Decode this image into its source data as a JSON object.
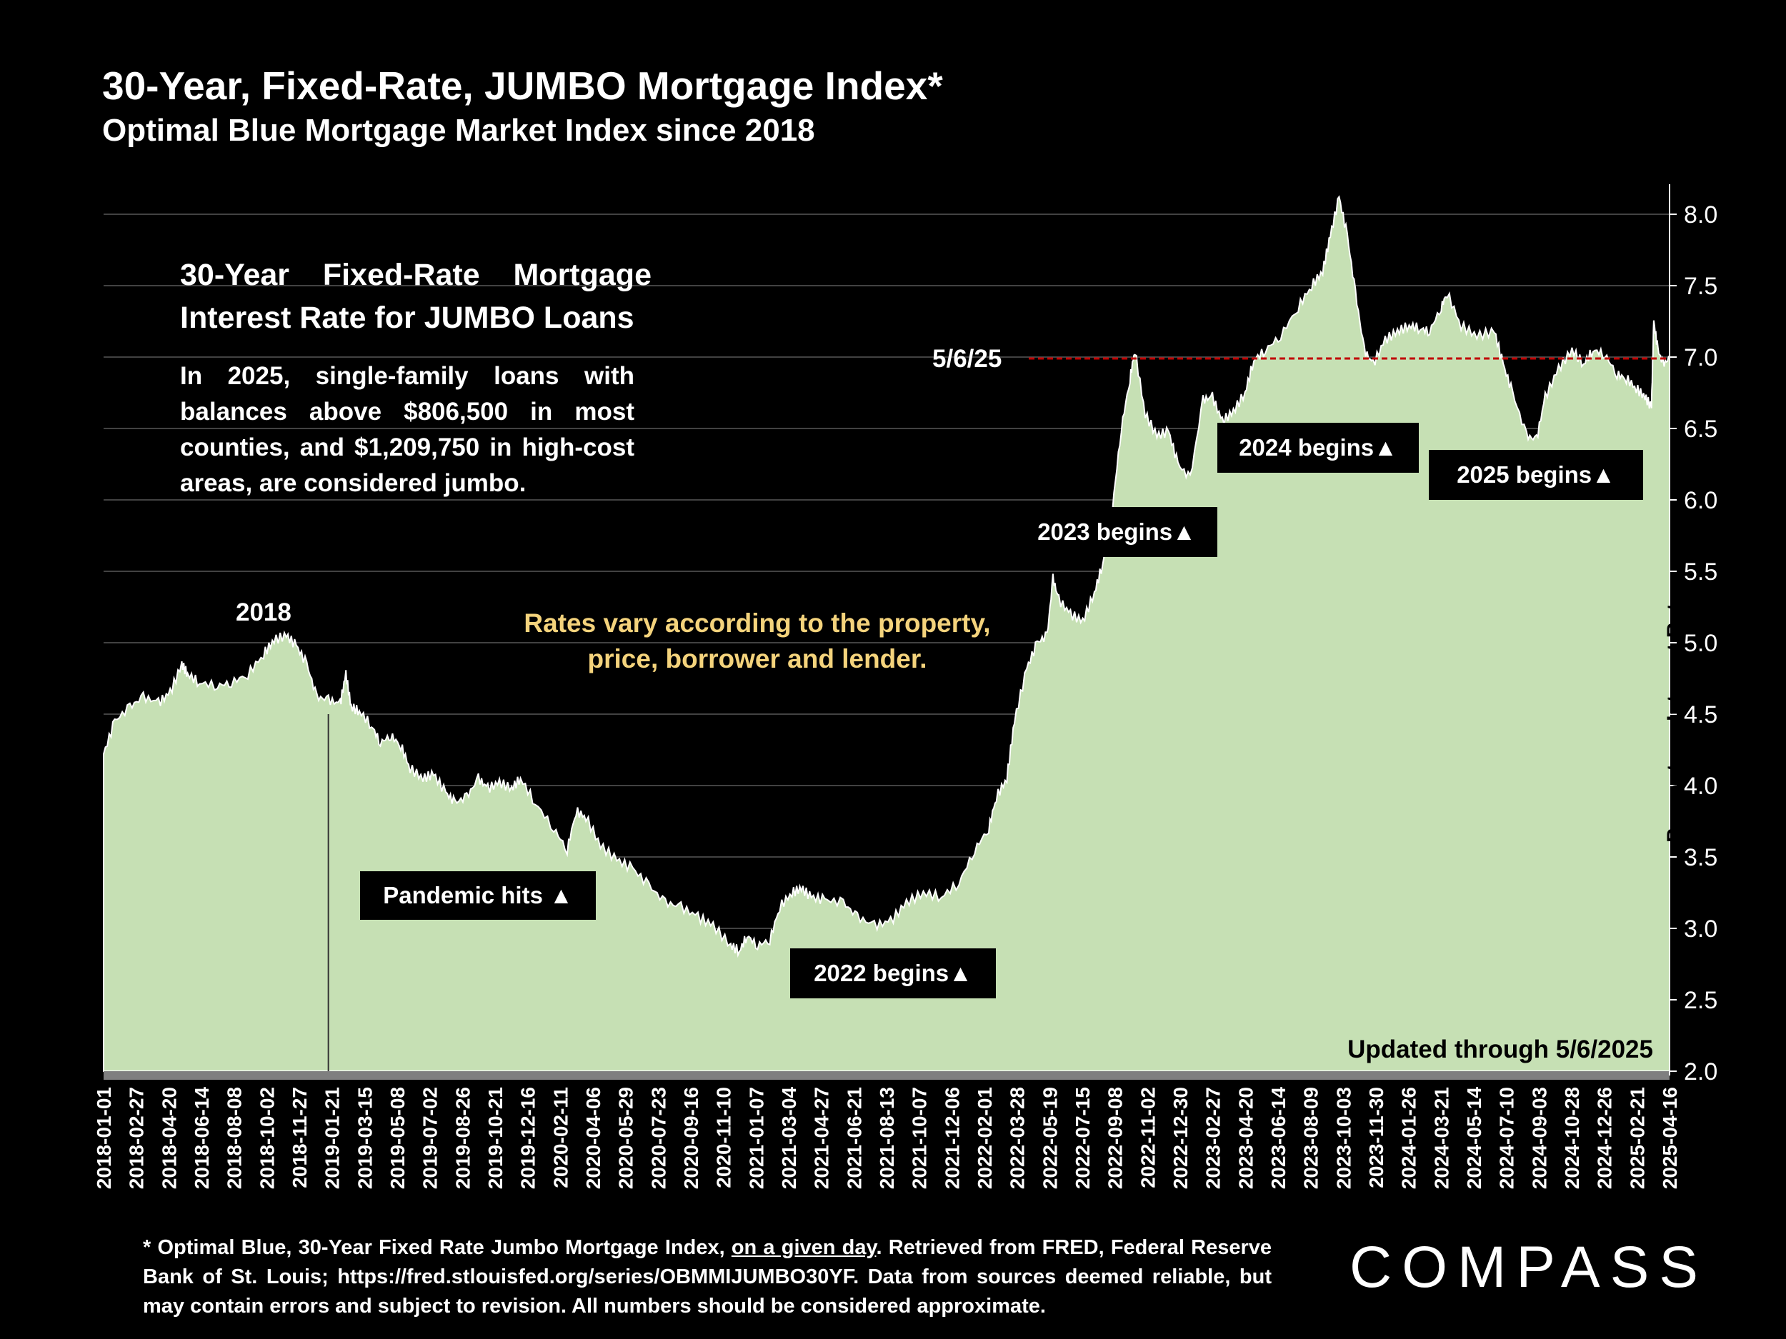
{
  "header": {
    "title": "30-Year, Fixed-Rate, JUMBO Mortgage Index*",
    "subtitle": "Optimal Blue Mortgage Market Index since 2018"
  },
  "info_box": {
    "title_line1": "30-Year Fixed-Rate Mortgage",
    "title_line2": "Interest Rate for JUMBO Loans",
    "description": "In 2025, single-family loans with balances above $806,500 in most counties, and $1,209,750 in high-cost areas, are considered jumbo."
  },
  "annotations": {
    "year_2018": "2018",
    "rates_note": "Rates vary according to the property, price, borrower and lender.",
    "pandemic": "Pandemic hits ▲",
    "begins_2022": "2022 begins▲",
    "begins_2023": "2023 begins▲",
    "begins_2024": "2024 begins▲",
    "begins_2025": "2025 begins▲",
    "current_date": "5/6/25",
    "updated": "Updated through 5/6/2025"
  },
  "footnote": {
    "part1": "* Optimal Blue, 30-Year Fixed Rate Jumbo Mortgage Index, ",
    "underlined": "on a given day",
    "part2": ". Retrieved from FRED, Federal Reserve Bank of St. Louis; https://fred.stlouisfed.org/series/OBMMIJUMBO30YF. Data from sources deemed reliable, but may contain errors and subject to revision. All numbers should be considered approximate."
  },
  "logo": {
    "text": "COMPASS"
  },
  "colors": {
    "area_fill": "#c6e0b4",
    "reference_line": "#c00000",
    "rates_note": "#f4d37c",
    "background": "#000000"
  },
  "chart_data": {
    "type": "area",
    "ylabel": "Percentage Interest Rate",
    "ylim": [
      2.0,
      8.0
    ],
    "yticks": [
      "2.0",
      "2.5",
      "3.0",
      "3.5",
      "4.0",
      "4.5",
      "5.0",
      "5.5",
      "6.0",
      "6.5",
      "7.0",
      "7.5",
      "8.0"
    ],
    "xlim": [
      "2018-01-01",
      "2025-05-06"
    ],
    "xticks": [
      "2018-01-01",
      "2018-02-27",
      "2018-04-20",
      "2018-06-14",
      "2018-08-08",
      "2018-10-02",
      "2018-11-27",
      "2019-01-21",
      "2019-03-15",
      "2019-05-08",
      "2019-07-02",
      "2019-08-26",
      "2019-10-21",
      "2019-12-16",
      "2020-02-11",
      "2020-04-06",
      "2020-05-29",
      "2020-07-23",
      "2020-09-16",
      "2020-11-10",
      "2021-01-07",
      "2021-03-04",
      "2021-04-27",
      "2021-06-21",
      "2021-08-13",
      "2021-10-07",
      "2021-12-06",
      "2022-02-01",
      "2022-03-28",
      "2022-05-19",
      "2022-07-15",
      "2022-09-08",
      "2022-11-02",
      "2022-12-30",
      "2023-02-27",
      "2023-04-20",
      "2023-06-14",
      "2023-08-09",
      "2023-10-03",
      "2023-11-30",
      "2024-01-26",
      "2024-03-21",
      "2024-05-14",
      "2024-07-10",
      "2024-09-03",
      "2024-10-28",
      "2024-12-26",
      "2025-02-21",
      "2025-04-16"
    ],
    "reference_line": {
      "label": "5/6/25",
      "value": 6.99
    },
    "series": [
      {
        "points": [
          [
            "2018-01-01",
            4.22
          ],
          [
            "2018-01-20",
            4.45
          ],
          [
            "2018-02-15",
            4.55
          ],
          [
            "2018-03-10",
            4.62
          ],
          [
            "2018-04-05",
            4.58
          ],
          [
            "2018-04-25",
            4.65
          ],
          [
            "2018-05-15",
            4.85
          ],
          [
            "2018-05-25",
            4.78
          ],
          [
            "2018-06-14",
            4.72
          ],
          [
            "2018-07-15",
            4.7
          ],
          [
            "2018-08-08",
            4.72
          ],
          [
            "2018-09-05",
            4.78
          ],
          [
            "2018-10-02",
            4.92
          ],
          [
            "2018-10-20",
            5.02
          ],
          [
            "2018-11-10",
            5.05
          ],
          [
            "2018-11-27",
            4.98
          ],
          [
            "2018-12-15",
            4.85
          ],
          [
            "2019-01-01",
            4.62
          ],
          [
            "2019-01-21",
            4.6
          ],
          [
            "2019-02-10",
            4.57
          ],
          [
            "2019-02-20",
            4.78
          ],
          [
            "2019-03-01",
            4.55
          ],
          [
            "2019-03-15",
            4.52
          ],
          [
            "2019-04-05",
            4.42
          ],
          [
            "2019-04-20",
            4.3
          ],
          [
            "2019-05-08",
            4.35
          ],
          [
            "2019-05-25",
            4.28
          ],
          [
            "2019-06-10",
            4.12
          ],
          [
            "2019-07-02",
            4.05
          ],
          [
            "2019-07-20",
            4.08
          ],
          [
            "2019-08-10",
            3.95
          ],
          [
            "2019-08-26",
            3.88
          ],
          [
            "2019-09-15",
            3.92
          ],
          [
            "2019-10-05",
            4.05
          ],
          [
            "2019-10-21",
            3.98
          ],
          [
            "2019-11-10",
            4.02
          ],
          [
            "2019-12-01",
            3.98
          ],
          [
            "2019-12-16",
            4.05
          ],
          [
            "2020-01-10",
            3.88
          ],
          [
            "2020-02-11",
            3.7
          ],
          [
            "2020-03-05",
            3.55
          ],
          [
            "2020-03-20",
            3.82
          ],
          [
            "2020-04-06",
            3.78
          ],
          [
            "2020-05-01",
            3.58
          ],
          [
            "2020-05-29",
            3.48
          ],
          [
            "2020-06-25",
            3.42
          ],
          [
            "2020-07-23",
            3.3
          ],
          [
            "2020-08-20",
            3.18
          ],
          [
            "2020-09-16",
            3.15
          ],
          [
            "2020-10-15",
            3.08
          ],
          [
            "2020-11-10",
            3.02
          ],
          [
            "2020-12-10",
            2.88
          ],
          [
            "2020-12-25",
            2.84
          ],
          [
            "2021-01-07",
            2.95
          ],
          [
            "2021-01-25",
            2.88
          ],
          [
            "2021-02-15",
            2.92
          ],
          [
            "2021-03-04",
            3.15
          ],
          [
            "2021-03-25",
            3.25
          ],
          [
            "2021-04-10",
            3.28
          ],
          [
            "2021-04-27",
            3.22
          ],
          [
            "2021-05-20",
            3.2
          ],
          [
            "2021-06-21",
            3.18
          ],
          [
            "2021-07-15",
            3.08
          ],
          [
            "2021-08-13",
            3.02
          ],
          [
            "2021-09-10",
            3.05
          ],
          [
            "2021-10-07",
            3.18
          ],
          [
            "2021-11-05",
            3.25
          ],
          [
            "2021-12-06",
            3.22
          ],
          [
            "2022-01-05",
            3.32
          ],
          [
            "2022-02-01",
            3.55
          ],
          [
            "2022-02-25",
            3.7
          ],
          [
            "2022-03-10",
            3.92
          ],
          [
            "2022-03-28",
            4.05
          ],
          [
            "2022-04-10",
            4.45
          ],
          [
            "2022-05-01",
            4.82
          ],
          [
            "2022-05-19",
            5.0
          ],
          [
            "2022-06-05",
            5.05
          ],
          [
            "2022-06-15",
            5.45
          ],
          [
            "2022-06-25",
            5.3
          ],
          [
            "2022-07-15",
            5.2
          ],
          [
            "2022-08-05",
            5.15
          ],
          [
            "2022-08-25",
            5.35
          ],
          [
            "2022-09-08",
            5.55
          ],
          [
            "2022-09-25",
            5.95
          ],
          [
            "2022-10-10",
            6.5
          ],
          [
            "2022-10-25",
            6.85
          ],
          [
            "2022-11-02",
            7.05
          ],
          [
            "2022-11-20",
            6.6
          ],
          [
            "2022-12-10",
            6.45
          ],
          [
            "2022-12-30",
            6.48
          ],
          [
            "2023-01-15",
            6.25
          ],
          [
            "2023-02-05",
            6.15
          ],
          [
            "2023-02-27",
            6.7
          ],
          [
            "2023-03-15",
            6.72
          ],
          [
            "2023-04-01",
            6.55
          ],
          [
            "2023-04-20",
            6.62
          ],
          [
            "2023-05-10",
            6.75
          ],
          [
            "2023-05-25",
            6.98
          ],
          [
            "2023-06-14",
            7.05
          ],
          [
            "2023-07-10",
            7.15
          ],
          [
            "2023-08-09",
            7.35
          ],
          [
            "2023-09-01",
            7.5
          ],
          [
            "2023-09-20",
            7.6
          ],
          [
            "2023-10-03",
            7.85
          ],
          [
            "2023-10-18",
            8.12
          ],
          [
            "2023-11-01",
            7.85
          ],
          [
            "2023-11-15",
            7.45
          ],
          [
            "2023-11-30",
            7.05
          ],
          [
            "2023-12-15",
            6.95
          ],
          [
            "2024-01-05",
            7.12
          ],
          [
            "2024-01-26",
            7.18
          ],
          [
            "2024-02-15",
            7.22
          ],
          [
            "2024-03-05",
            7.2
          ],
          [
            "2024-03-21",
            7.18
          ],
          [
            "2024-04-10",
            7.35
          ],
          [
            "2024-04-20",
            7.45
          ],
          [
            "2024-05-14",
            7.22
          ],
          [
            "2024-06-10",
            7.15
          ],
          [
            "2024-07-10",
            7.18
          ],
          [
            "2024-07-25",
            6.95
          ],
          [
            "2024-08-10",
            6.75
          ],
          [
            "2024-09-03",
            6.45
          ],
          [
            "2024-09-20",
            6.42
          ],
          [
            "2024-10-05",
            6.72
          ],
          [
            "2024-10-28",
            6.92
          ],
          [
            "2024-11-20",
            7.05
          ],
          [
            "2024-12-10",
            6.95
          ],
          [
            "2024-12-26",
            7.05
          ],
          [
            "2025-01-15",
            7.02
          ],
          [
            "2025-02-05",
            6.88
          ],
          [
            "2025-02-21",
            6.85
          ],
          [
            "2025-03-10",
            6.78
          ],
          [
            "2025-03-25",
            6.72
          ],
          [
            "2025-04-05",
            6.65
          ],
          [
            "2025-04-09",
            7.25
          ],
          [
            "2025-04-16",
            7.05
          ],
          [
            "2025-04-25",
            6.95
          ],
          [
            "2025-05-06",
            6.99
          ]
        ]
      }
    ]
  }
}
